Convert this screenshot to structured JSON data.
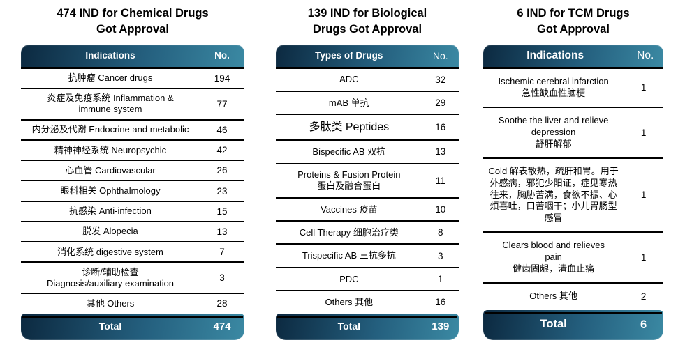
{
  "colors": {
    "header_gradient_start": "#0c2940",
    "header_gradient_mid": "#245f7e",
    "header_gradient_end": "#3b89a3",
    "header_text": "#ffffff",
    "body_text": "#000000",
    "separator_line": "#000000"
  },
  "tables": [
    {
      "name": "chemical-drugs",
      "title": "474 IND for Chemical Drugs\nGot Approval",
      "col_label": "Indications",
      "col_value": "No.",
      "rows": [
        {
          "label": "抗肿瘤 Cancer drugs",
          "value": "194"
        },
        {
          "label": "炎症及免疫系统 Inflammation &\nimmune system",
          "value": "77"
        },
        {
          "label": "内分泌及代谢 Endocrine and metabolic",
          "value": "46"
        },
        {
          "label": "精神神经系统 Neuropsychic",
          "value": "42"
        },
        {
          "label": "心血管 Cardiovascular",
          "value": "26"
        },
        {
          "label": "眼科相关 Ophthalmology",
          "value": "23"
        },
        {
          "label": "抗感染 Anti-infection",
          "value": "15"
        },
        {
          "label": "脱发 Alopecia",
          "value": "13"
        },
        {
          "label": "消化系统 digestive system",
          "value": "7"
        },
        {
          "label": "诊断/辅助检查\nDiagnosis/auxiliary examination",
          "value": "3"
        },
        {
          "label": "其他 Others",
          "value": "28"
        }
      ],
      "total_label": "Total",
      "total_value": "474"
    },
    {
      "name": "biological-drugs",
      "title": "139 IND for Biological\nDrugs Got Approval",
      "col_label": "Types of Drugs",
      "col_value": "No.",
      "rows": [
        {
          "label": "ADC",
          "value": "32"
        },
        {
          "label": "mAB 单抗",
          "value": "29"
        },
        {
          "label": "多肽类 Peptides",
          "value": "16",
          "large": true
        },
        {
          "label": "Bispecific AB 双抗",
          "value": "13"
        },
        {
          "label": "Proteins & Fusion Protein\n蛋白及融合蛋白",
          "value": "11"
        },
        {
          "label": "Vaccines 疫苗",
          "value": "10"
        },
        {
          "label": "Cell Therapy 细胞治疗类",
          "value": "8"
        },
        {
          "label": "Trispecific AB 三抗多抗",
          "value": "3"
        },
        {
          "label": "PDC",
          "value": "1"
        },
        {
          "label": "Others 其他",
          "value": "16"
        }
      ],
      "total_label": "Total",
      "total_value": "139"
    },
    {
      "name": "tcm-drugs",
      "title": "6 IND for TCM Drugs\nGot Approval",
      "col_label": "Indications",
      "col_value": "No.",
      "rows": [
        {
          "label": "Ischemic cerebral infarction\n急性缺血性脑梗",
          "value": "1"
        },
        {
          "label": "Soothe the liver and relieve\ndepression\n舒肝解郁",
          "value": "1"
        },
        {
          "label": "Cold 解表散热，疏肝和胃。用于外感病，邪犯少阳证，症见寒热往来，胸胁苦满，食欲不振、心烦喜吐，口苦咽干；小儿胃肠型感冒",
          "value": "1"
        },
        {
          "label": "Clears blood and relieves\npain\n健齿固龈，清血止痛",
          "value": "1"
        },
        {
          "label": "Others 其他",
          "value": "2"
        }
      ],
      "total_label": "Total",
      "total_value": "6"
    }
  ],
  "chart_data": [
    {
      "type": "table",
      "title": "474 IND for Chemical Drugs Got Approval",
      "columns": [
        "Indications",
        "No."
      ],
      "categories": [
        "抗肿瘤 Cancer drugs",
        "炎症及免疫系统 Inflammation & immune system",
        "内分泌及代谢 Endocrine and metabolic",
        "精神神经系统 Neuropsychic",
        "心血管 Cardiovascular",
        "眼科相关 Ophthalmology",
        "抗感染 Anti-infection",
        "脱发 Alopecia",
        "消化系统 digestive system",
        "诊断/辅助检查 Diagnosis/auxiliary examination",
        "其他 Others"
      ],
      "values": [
        194,
        77,
        46,
        42,
        26,
        23,
        15,
        13,
        7,
        3,
        28
      ],
      "total": 474
    },
    {
      "type": "table",
      "title": "139 IND for Biological Drugs Got Approval",
      "columns": [
        "Types of Drugs",
        "No."
      ],
      "categories": [
        "ADC",
        "mAB 单抗",
        "多肽类 Peptides",
        "Bispecific AB 双抗",
        "Proteins & Fusion Protein 蛋白及融合蛋白",
        "Vaccines 疫苗",
        "Cell Therapy 细胞治疗类",
        "Trispecific AB 三抗多抗",
        "PDC",
        "Others 其他"
      ],
      "values": [
        32,
        29,
        16,
        13,
        11,
        10,
        8,
        3,
        1,
        16
      ],
      "total": 139
    },
    {
      "type": "table",
      "title": "6 IND for TCM Drugs Got Approval",
      "columns": [
        "Indications",
        "No."
      ],
      "categories": [
        "Ischemic cerebral infarction 急性缺血性脑梗",
        "Soothe the liver and relieve depression 舒肝解郁",
        "Cold 解表散热，疏肝和胃。用于外感病，邪犯少阳证，症见寒热往来，胸胁苦满，食欲不振、心烦喜吐，口苦咽干；小儿胃肠型感冒",
        "Clears blood and relieves pain 健齿固龈，清血止痛",
        "Others 其他"
      ],
      "values": [
        1,
        1,
        1,
        1,
        2
      ],
      "total": 6
    }
  ]
}
